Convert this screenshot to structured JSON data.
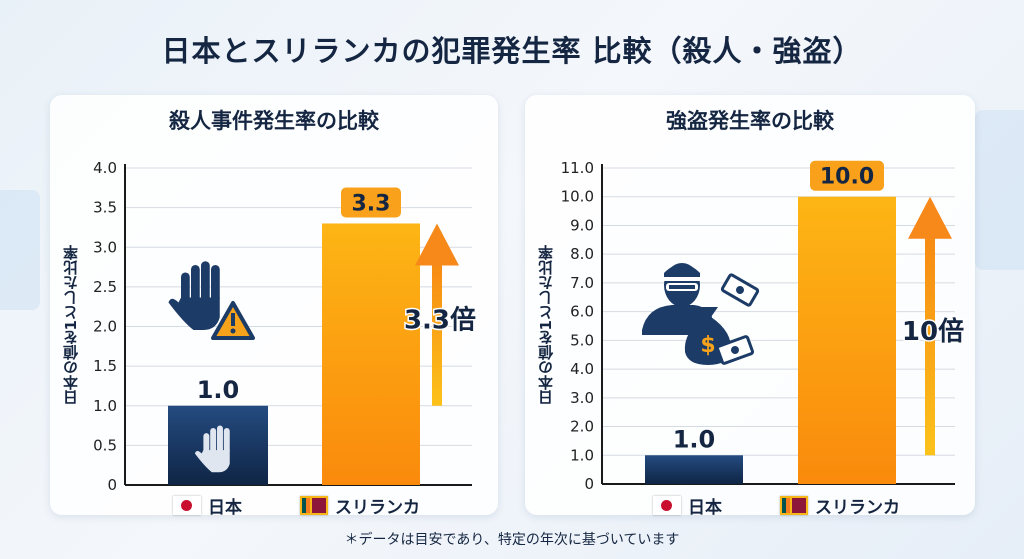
{
  "title": "日本とスリランカの犯罪発生率 比較（殺人・強盗）",
  "footnote": "＊データは目安であり、特定の年次に基づいています",
  "colors": {
    "japan_bar": "#1b3a66",
    "srilanka_bar": "#f99a12",
    "text": "#152642"
  },
  "chart_data": [
    {
      "type": "bar",
      "title": "殺人事件発生率の比較",
      "ylabel": "日本の値を1とした比率",
      "categories": [
        "日本",
        "スリランカ"
      ],
      "values": [
        1.0,
        3.3
      ],
      "value_labels": [
        "1.0",
        "3.3"
      ],
      "ylim": [
        0,
        4.0
      ],
      "yticks": [
        "0",
        "0.5",
        "1.0",
        "1.5",
        "2.0",
        "2.5",
        "3.0",
        "3.5",
        "4.0"
      ],
      "ytick_values": [
        0,
        0.5,
        1.0,
        1.5,
        2.0,
        2.5,
        3.0,
        3.5,
        4.0
      ],
      "grid": true,
      "annotation": "3.3倍",
      "icons": [
        "raised-hand-icon",
        "warning-icon",
        "hand-icon"
      ]
    },
    {
      "type": "bar",
      "title": "強盗発生率の比較",
      "ylabel": "日本の値を1とした比率",
      "categories": [
        "日本",
        "スリランカ"
      ],
      "values": [
        1.0,
        10.0
      ],
      "value_labels": [
        "1.0",
        "10.0"
      ],
      "ylim": [
        0,
        11.0
      ],
      "yticks": [
        "0",
        "1.0",
        "2.0",
        "3.0",
        "4.0",
        "5.0",
        "6.0",
        "7.0",
        "8.0",
        "9.0",
        "10.0",
        "11.0"
      ],
      "ytick_values": [
        0,
        1,
        2,
        3,
        4,
        5,
        6,
        7,
        8,
        9,
        10,
        11
      ],
      "grid": true,
      "annotation": "10倍",
      "icons": [
        "robber-icon",
        "money-bag-icon",
        "banknote-icon"
      ]
    }
  ]
}
